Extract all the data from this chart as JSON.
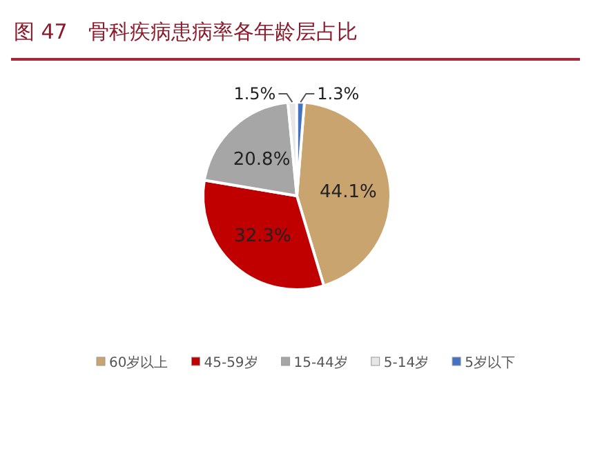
{
  "chart_data": {
    "type": "pie",
    "title": "图 47　骨科疾病患病率各年龄层占比",
    "categories": [
      "60岁以上",
      "45-59岁",
      "15-44岁",
      "5-14岁",
      "5岁以下"
    ],
    "values": [
      44.1,
      32.3,
      20.8,
      1.5,
      1.3
    ],
    "colors": [
      "#c9a46e",
      "#c00000",
      "#a6a6a6",
      "#e6e6e6",
      "#4472c4"
    ],
    "value_labels": [
      "44.1%",
      "32.3%",
      "20.8%",
      "1.5%",
      "1.3%"
    ],
    "legend": "bottom"
  }
}
